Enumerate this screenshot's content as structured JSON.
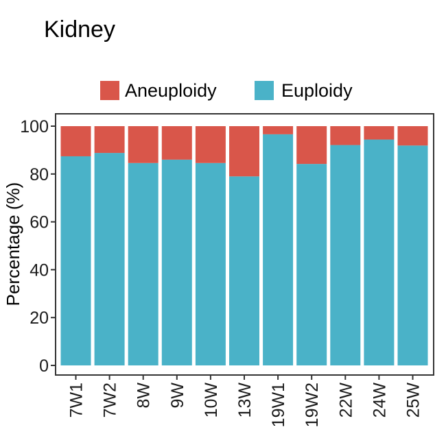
{
  "chart_data": {
    "type": "bar",
    "stacked": true,
    "title": "Kidney",
    "xlabel": "",
    "ylabel": "Percentage (%)",
    "ylim": [
      0,
      100
    ],
    "yticks": [
      0,
      20,
      40,
      60,
      80,
      100
    ],
    "categories": [
      "7W1",
      "7W2",
      "8W",
      "9W",
      "10W",
      "13W",
      "19W1",
      "19W2",
      "22W",
      "24W",
      "25W"
    ],
    "series": [
      {
        "name": "Euploidy",
        "color": "#4AB2C8",
        "values": [
          87.4,
          88.8,
          84.6,
          86.0,
          84.6,
          79.0,
          96.6,
          84.2,
          92.1,
          94.4,
          91.9
        ]
      },
      {
        "name": "Aneuploidy",
        "color": "#D9564A",
        "values": [
          12.6,
          11.2,
          15.4,
          14.0,
          15.4,
          21.0,
          3.4,
          15.8,
          7.9,
          5.6,
          8.1
        ]
      }
    ],
    "legend": {
      "placement": "top",
      "entries": [
        "Aneuploidy",
        "Euploidy"
      ]
    },
    "grid": false
  }
}
